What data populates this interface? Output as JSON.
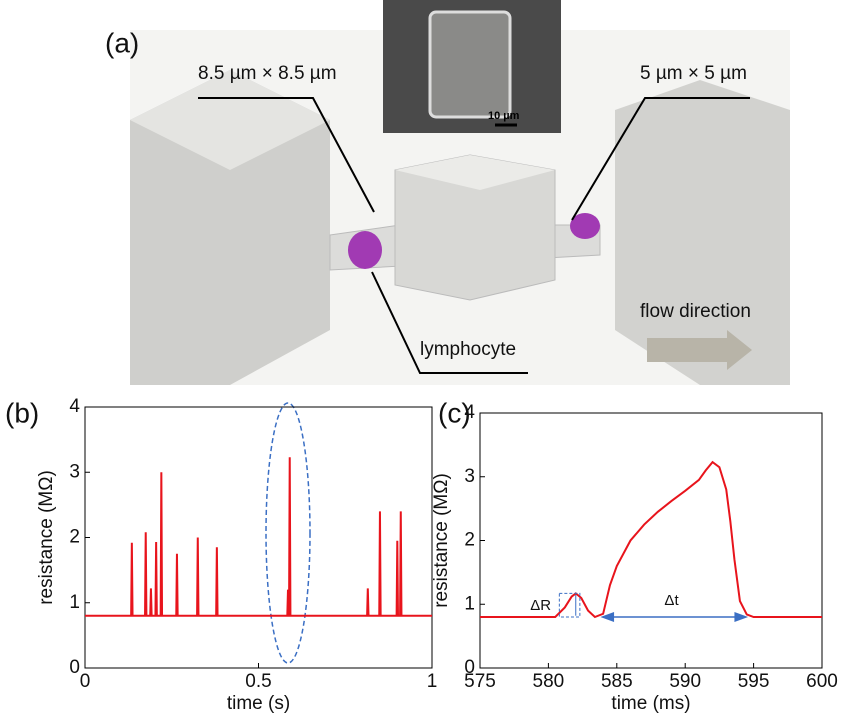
{
  "figure_a": {
    "label": "(a)",
    "left_channel": "8.5 µm × 8.5 µm",
    "right_channel": "5 µm × 5 µm",
    "scale_bar": "10 µm",
    "cell": "lymphocyte",
    "flow": "flow direction"
  },
  "chart_data": [
    {
      "type": "line",
      "panel_label": "(b)",
      "xlabel": "time (s)",
      "ylabel": "resistance (MΩ)",
      "xlim": [
        0,
        1
      ],
      "xticks": [
        0,
        0.5,
        1
      ],
      "ylim": [
        0,
        4
      ],
      "yticks": [
        0,
        1,
        2,
        3,
        4
      ],
      "series": [
        {
          "color": "#e8141c",
          "x": [
            0,
            0.133,
            0.135,
            0.137,
            0.173,
            0.175,
            0.177,
            0.188,
            0.19,
            0.192,
            0.203,
            0.205,
            0.207,
            0.218,
            0.22,
            0.222,
            0.263,
            0.265,
            0.267,
            0.323,
            0.325,
            0.327,
            0.378,
            0.38,
            0.382,
            0.583,
            0.585,
            0.587,
            0.588,
            0.59,
            0.592,
            0.813,
            0.815,
            0.817,
            0.848,
            0.85,
            0.852,
            0.898,
            0.9,
            0.902,
            0.908,
            0.91,
            0.912,
            1
          ],
          "values": [
            0.8,
            0.8,
            1.92,
            0.8,
            0.8,
            2.08,
            0.8,
            0.8,
            1.22,
            0.8,
            0.8,
            1.93,
            0.8,
            0.8,
            3.0,
            0.8,
            0.8,
            1.75,
            0.8,
            0.8,
            2.0,
            0.8,
            0.8,
            1.85,
            0.8,
            0.8,
            1.2,
            0.8,
            0.8,
            3.23,
            0.8,
            0.8,
            1.22,
            0.8,
            0.8,
            2.4,
            0.8,
            0.8,
            1.95,
            0.8,
            0.8,
            2.4,
            0.8,
            0.8
          ]
        }
      ]
    },
    {
      "type": "line",
      "panel_label": "(c)",
      "xlabel": "time (ms)",
      "ylabel": "resistance (MΩ)",
      "xlim": [
        575,
        600
      ],
      "xticks": [
        575,
        580,
        585,
        590,
        595,
        600
      ],
      "ylim": [
        0,
        4
      ],
      "yticks": [
        0,
        1,
        2,
        3,
        4
      ],
      "annotations": {
        "delta_r": "ΔR",
        "delta_t": "Δt"
      },
      "series": [
        {
          "color": "#e8141c",
          "x": [
            575,
            580.5,
            581.2,
            581.7,
            582,
            582.4,
            582.9,
            583.4,
            584,
            584.5,
            585,
            586,
            587,
            588,
            589,
            590,
            591,
            591.5,
            592,
            592.5,
            593,
            593.3,
            593.6,
            594,
            594.5,
            595,
            600
          ],
          "values": [
            0.8,
            0.8,
            0.95,
            1.12,
            1.17,
            1.1,
            0.9,
            0.8,
            0.85,
            1.3,
            1.6,
            2.0,
            2.25,
            2.45,
            2.62,
            2.78,
            2.95,
            3.1,
            3.23,
            3.15,
            2.8,
            2.3,
            1.7,
            1.05,
            0.84,
            0.8,
            0.8
          ]
        }
      ]
    }
  ]
}
